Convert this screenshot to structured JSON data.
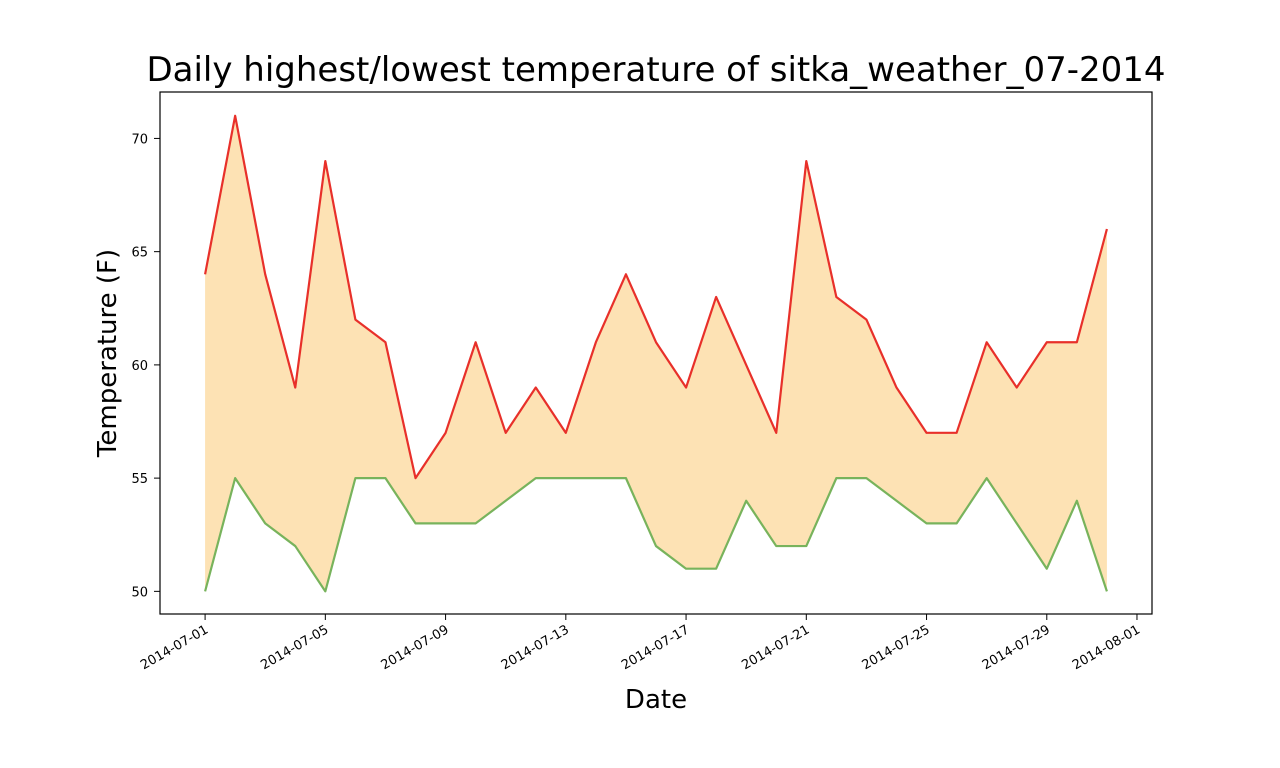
{
  "chart_data": {
    "type": "area",
    "title": "Daily highest/lowest temperature of sitka_weather_07-2014",
    "xlabel": "Date",
    "ylabel": "Temperature (F)",
    "x": [
      "2014-07-01",
      "2014-07-02",
      "2014-07-03",
      "2014-07-04",
      "2014-07-05",
      "2014-07-06",
      "2014-07-07",
      "2014-07-08",
      "2014-07-09",
      "2014-07-10",
      "2014-07-11",
      "2014-07-12",
      "2014-07-13",
      "2014-07-14",
      "2014-07-15",
      "2014-07-16",
      "2014-07-17",
      "2014-07-18",
      "2014-07-19",
      "2014-07-20",
      "2014-07-21",
      "2014-07-22",
      "2014-07-23",
      "2014-07-24",
      "2014-07-25",
      "2014-07-26",
      "2014-07-27",
      "2014-07-28",
      "2014-07-29",
      "2014-07-30",
      "2014-07-31"
    ],
    "series": [
      {
        "values": [
          64,
          71,
          64,
          59,
          69,
          62,
          61,
          55,
          57,
          61,
          57,
          59,
          57,
          61,
          64,
          61,
          59,
          63,
          60,
          57,
          69,
          63,
          62,
          59,
          57,
          57,
          61,
          59,
          61,
          61,
          66
        ],
        "color": "#e8302a"
      },
      {
        "values": [
          50,
          55,
          53,
          52,
          50,
          55,
          55,
          53,
          53,
          53,
          54,
          55,
          55,
          55,
          55,
          52,
          51,
          51,
          54,
          52,
          52,
          55,
          55,
          54,
          53,
          53,
          55,
          53,
          51,
          54,
          50
        ],
        "color": "#78b35c"
      }
    ],
    "fill_color": "#fde2b4",
    "xticks": [
      "2014-07-01",
      "2014-07-05",
      "2014-07-09",
      "2014-07-13",
      "2014-07-17",
      "2014-07-21",
      "2014-07-25",
      "2014-07-29",
      "2014-08-01"
    ],
    "yticks": [
      50,
      55,
      60,
      65,
      70
    ],
    "ylim": [
      49.0,
      72.05
    ],
    "xlim": [
      "2014-06-29 12:00",
      "2014-08-01 12:00"
    ],
    "grid": false
  }
}
